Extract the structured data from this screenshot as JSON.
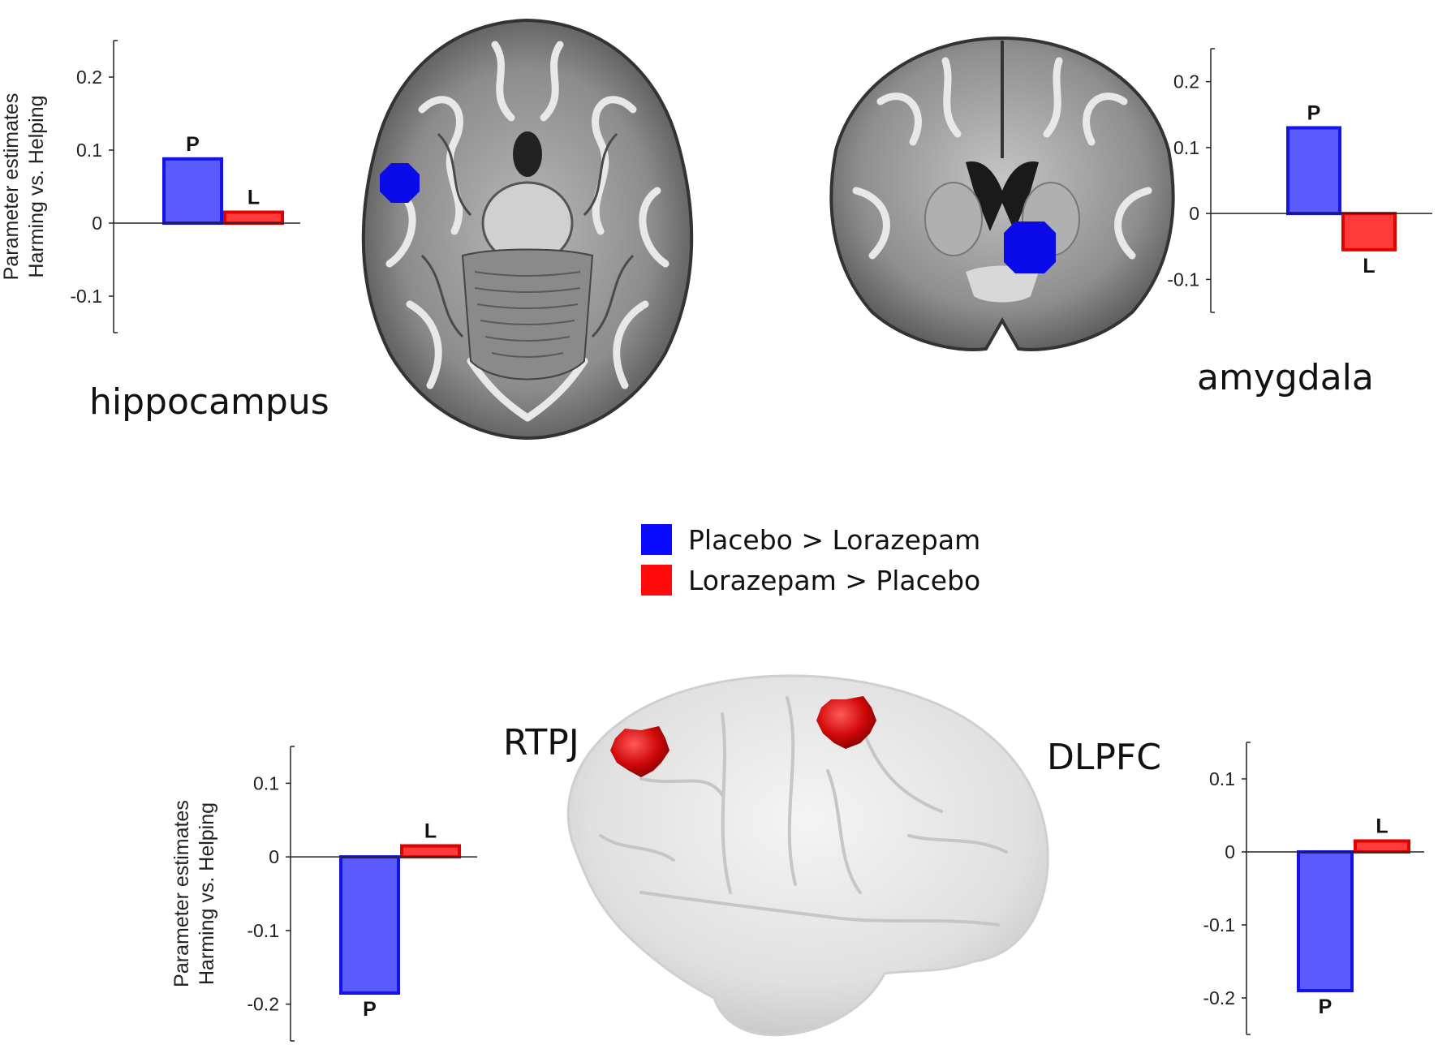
{
  "colors": {
    "placebo": "#5a5aff",
    "placebo_edge": "#1414e6",
    "lorazepam": "#ff3a3a",
    "lorazepam_edge": "#e00000",
    "roi_blue": "#0b0bea",
    "roi_red": "#d20a0a",
    "legend_blue": "#0a0aff",
    "legend_red": "#ff0a0a"
  },
  "regions": {
    "hippocampus": "hippocampus",
    "amygdala": "amygdala",
    "rtpj": "RTPJ",
    "dlpfc": "DLPFC"
  },
  "legend": {
    "items": [
      {
        "label": "Placebo > Lorazepam",
        "color": "#0a0aff"
      },
      {
        "label": "Lorazepam > Placebo",
        "color": "#ff0a0a"
      }
    ]
  },
  "chart_data": [
    {
      "type": "bar",
      "region": "hippocampus",
      "categories": [
        "P",
        "L"
      ],
      "values": [
        0.088,
        0.015
      ],
      "ylabel": [
        "Parameter estimates",
        "Harming vs. Helping"
      ],
      "ylim": [
        -0.15,
        0.25
      ],
      "yticks": [
        0.2,
        0.1,
        0,
        -0.1
      ],
      "ytick_labels": [
        "0.2",
        "0.1",
        "0",
        "-0.1"
      ],
      "grid": false
    },
    {
      "type": "bar",
      "region": "amygdala",
      "categories": [
        "P",
        "L"
      ],
      "values": [
        0.13,
        -0.055
      ],
      "ylabel": [],
      "ylim": [
        -0.15,
        0.25
      ],
      "yticks": [
        0.2,
        0.1,
        0,
        -0.1
      ],
      "ytick_labels": [
        "0.2",
        "0.1",
        "0",
        "-0.1"
      ],
      "grid": false
    },
    {
      "type": "bar",
      "region": "RTPJ",
      "categories": [
        "P",
        "L"
      ],
      "values": [
        -0.185,
        0.015
      ],
      "ylabel": [
        "Parameter estimates",
        "Harming vs. Helping"
      ],
      "ylim": [
        -0.25,
        0.15
      ],
      "yticks": [
        0.1,
        0,
        -0.1,
        -0.2
      ],
      "ytick_labels": [
        "0.1",
        "0",
        "-0.1",
        "-0.2"
      ],
      "grid": false
    },
    {
      "type": "bar",
      "region": "DLPFC",
      "categories": [
        "P",
        "L"
      ],
      "values": [
        -0.19,
        0.015
      ],
      "ylabel": [],
      "ylim": [
        -0.25,
        0.15
      ],
      "yticks": [
        0.1,
        0,
        -0.1,
        -0.2
      ],
      "ytick_labels": [
        "0.1",
        "0",
        "-0.1",
        "-0.2"
      ],
      "grid": false
    }
  ]
}
